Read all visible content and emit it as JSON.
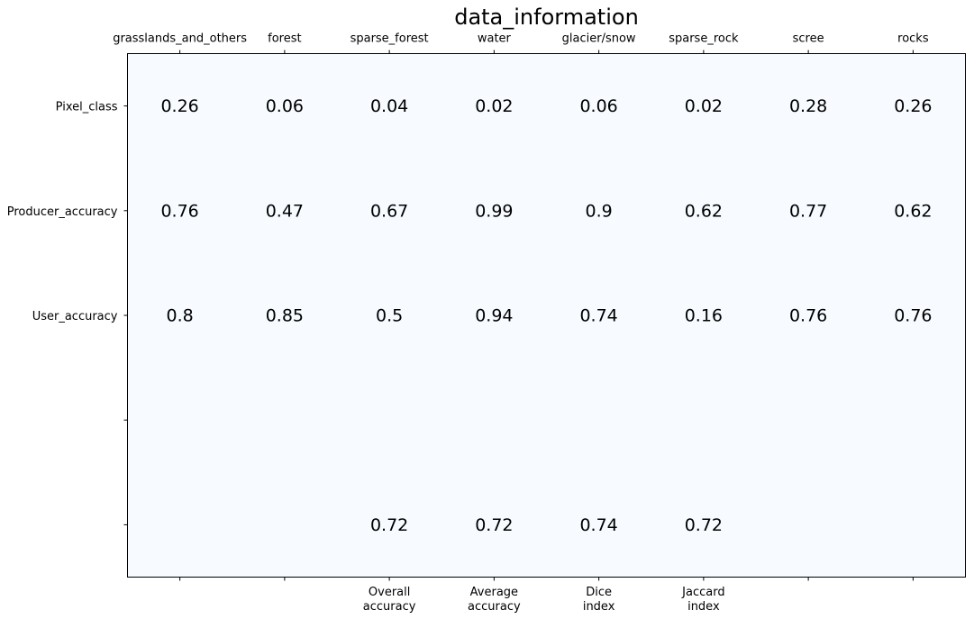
{
  "chart_data": {
    "type": "table",
    "title": "data_information",
    "columns": [
      "grasslands_and_others",
      "forest",
      "sparse_forest",
      "water",
      "glacier/snow",
      "sparse_rock",
      "scree",
      "rocks"
    ],
    "row_labels": [
      "Pixel_class",
      "Producer_accuracy",
      "User_accuracy",
      "",
      ""
    ],
    "cells": [
      [
        "0.26",
        "0.06",
        "0.04",
        "0.02",
        "0.06",
        "0.02",
        "0.28",
        "0.26"
      ],
      [
        "0.76",
        "0.47",
        "0.67",
        "0.99",
        "0.9",
        "0.62",
        "0.77",
        "0.62"
      ],
      [
        "0.8",
        "0.85",
        "0.5",
        "0.94",
        "0.74",
        "0.16",
        "0.76",
        "0.76"
      ],
      [
        "",
        "",
        "",
        "",
        "",
        "",
        "",
        ""
      ],
      [
        "",
        "",
        "0.72",
        "0.72",
        "0.74",
        "0.72",
        "",
        ""
      ]
    ],
    "bottom_labels": [
      [],
      [],
      [
        "Overall",
        "accuracy"
      ],
      [
        "Average",
        "accuracy"
      ],
      [
        "Dice",
        "index"
      ],
      [
        "Jaccard",
        "index"
      ],
      [],
      []
    ],
    "background_color": "#f7fbff",
    "grid": false
  }
}
